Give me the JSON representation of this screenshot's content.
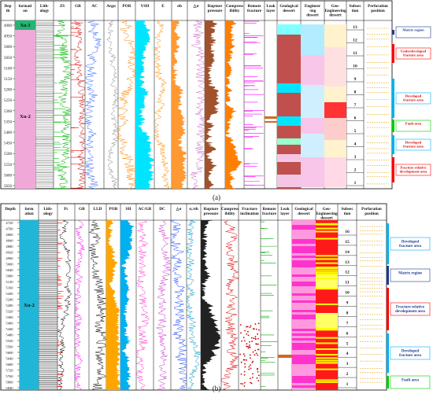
{
  "caption_a": "(a)",
  "caption_b": "(b)",
  "colors": {
    "formation": "#f0a8d8",
    "formation_top": "#22b573",
    "cyan": "#00e5ff",
    "geo_red": "#c0504d",
    "eng_red": "#ff0000",
    "yellow": "#ffff00",
    "magenta": "#ff00ff",
    "green": "#00cc00",
    "orange": "#ff8c00",
    "blue": "#1e4cff",
    "navy": "#1f3a8a"
  },
  "panel_a": {
    "headers": {
      "depth": "Dep\nth",
      "formation": "formati\non",
      "lithology": "Lith-\nology",
      "zs": "ZS",
      "gr": "GR",
      "ac": "AC",
      "ap": "Argα",
      "por": "POR",
      "vsh": "VSH",
      "e": "E",
      "sigma_h": "σh",
      "delta_sigma": "△σ",
      "rupture": "Rupture\npressure",
      "compress": "Compress\nibility",
      "remote": "Remote\nfracture",
      "leak": "Leak\nlayer",
      "geo": "Geological\ndessert",
      "eng": "Engineer\n-ing\ndessert",
      "geo_eng": "Geo-\nEngineering\ndessert",
      "subsection": "Subsec\ntion",
      "perforation": "Perforation\nposition"
    },
    "depth_ticks": [
      "4900",
      "4950",
      "5000",
      "5050",
      "5100",
      "5150",
      "5200",
      "5250",
      "5300",
      "5350",
      "5400",
      "5450",
      "5500",
      "5550",
      "5600",
      "5650"
    ],
    "formation_top_label": "Xu-3",
    "formation_label": "Xu-2",
    "subsections": [
      "13",
      "12",
      "11",
      "10",
      "9",
      "8",
      "7",
      "6",
      "5",
      "4",
      "3",
      "2",
      "1"
    ],
    "legend": [
      {
        "label": "Matrix region",
        "color": "#1f3a8a"
      },
      {
        "label": "Underdeveloped\nfracture area",
        "color": "#ff0000"
      },
      {
        "label": "Developed\nfracture area",
        "color": "#00b0f0"
      },
      {
        "label": "Fault area",
        "color": "#00cc00"
      },
      {
        "label": "Developed\nfracture area",
        "color": "#00b0f0"
      },
      {
        "label": "Fracture relative\ndevelopment area",
        "color": "#ff0000"
      }
    ]
  },
  "panel_b": {
    "headers": {
      "depth": "Depth",
      "formation": "form\nation",
      "lithology": "Lith-\nology",
      "pc": "Pc",
      "gr": "GR",
      "lld": "LLD",
      "por": "POR",
      "sh": "SH",
      "acgr": "AC/GR",
      "dc": "DC",
      "delta_sigma": "△σ",
      "sigma_ratio": "σᵥ/σh",
      "rupture": "Rupture\npressure",
      "compress": "Compress\nibility",
      "frac_incl": "Fracture\ninclination",
      "remote": "Remote\nfracture",
      "leak": "Leak\nlayer",
      "geo": "Geological\ndessert",
      "geo_eng": "Geo-\nEngineering\ndessert",
      "subsection": "Subsec\ntion",
      "perforation": "Perforation\nposition"
    },
    "depth_ticks": [
      "4720",
      "4760",
      "4800",
      "4840",
      "4880",
      "4920",
      "4960",
      "5000",
      "5040",
      "5080",
      "5120",
      "5160",
      "5200",
      "5240",
      "5280",
      "5320",
      "5360",
      "5400",
      "5440",
      "5480",
      "5520",
      "5560",
      "5600",
      "5640",
      "5680",
      "5720",
      "5760",
      "5800",
      "5840"
    ],
    "formation_label": "Xu-2",
    "subsections": [
      "16",
      "15",
      "14",
      "13",
      "12",
      "11",
      "10",
      "9",
      "8",
      "7",
      "6",
      "5",
      "4",
      "3",
      "2",
      "1"
    ],
    "legend": [
      {
        "label": "Developed\nfracture area",
        "color": "#00b0f0"
      },
      {
        "label": "Matrix region",
        "color": "#1f3a8a"
      },
      {
        "label": "Fracture relative\ndevelopment area",
        "color": "#ff0000"
      },
      {
        "label": "Developed\nfracture area",
        "color": "#00b0f0"
      },
      {
        "label": "Fault area",
        "color": "#00cc00"
      }
    ]
  }
}
